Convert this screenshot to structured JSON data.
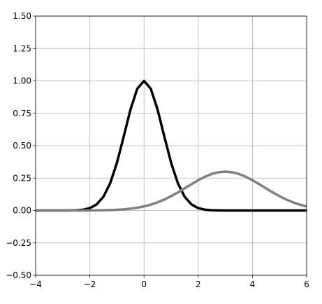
{
  "chart_data": {
    "type": "line",
    "x": [
      -4,
      -3.75,
      -3.5,
      -3.25,
      -3,
      -2.75,
      -2.5,
      -2.25,
      -2,
      -1.75,
      -1.5,
      -1.25,
      -1,
      -0.75,
      -0.5,
      -0.25,
      0,
      0.25,
      0.5,
      0.75,
      1,
      1.25,
      1.5,
      1.75,
      2,
      2.25,
      2.5,
      2.75,
      3,
      3.25,
      3.5,
      3.75,
      4,
      4.25,
      4.5,
      4.75,
      5,
      5.25,
      5.5,
      5.75,
      6
    ],
    "series": [
      {
        "color": "#000000",
        "values": [
          0,
          0,
          0,
          0,
          0.0001,
          0.0005,
          0.0019,
          0.0063,
          0.0183,
          0.0468,
          0.1054,
          0.2096,
          0.3679,
          0.5698,
          0.7788,
          0.9394,
          1,
          0.9394,
          0.7788,
          0.5698,
          0.3679,
          0.2096,
          0.1054,
          0.0468,
          0.0183,
          0.0063,
          0.0019,
          0.0005,
          0.0001,
          0,
          0,
          0,
          0,
          0,
          0,
          0,
          0,
          0,
          0,
          0,
          0
        ]
      },
      {
        "color": "#808080",
        "values": [
          0,
          0,
          0,
          0,
          0,
          0.0001,
          0.0002,
          0.0003,
          0.0006,
          0.0011,
          0.0019,
          0.0033,
          0.0055,
          0.0089,
          0.014,
          0.0214,
          0.0316,
          0.0453,
          0.0629,
          0.0846,
          0.1104,
          0.1395,
          0.1709,
          0.203,
          0.2336,
          0.2606,
          0.2818,
          0.2954,
          0.3,
          0.2954,
          0.2818,
          0.2606,
          0.2336,
          0.203,
          0.1709,
          0.1395,
          0.1104,
          0.0846,
          0.0629,
          0.0453,
          0.0316
        ]
      }
    ],
    "xlim": [
      -4,
      6
    ],
    "xticks": [
      {
        "value": -4,
        "label": "−4"
      },
      {
        "value": -2,
        "label": "−2"
      },
      0,
      2,
      4,
      6
    ],
    "ylim": [
      -0.5,
      1.5
    ],
    "yticks": [
      {
        "value": -0.5,
        "label": "−0.50"
      },
      {
        "value": -0.25,
        "label": "−0.25"
      },
      {
        "value": 0,
        "label": "0.00"
      },
      0.25,
      {
        "value": 0.5,
        "label": "0.50"
      },
      0.75,
      {
        "value": 1,
        "label": "1.00"
      },
      1.25,
      {
        "value": 1.5,
        "label": "1.50"
      }
    ],
    "grid": true
  }
}
